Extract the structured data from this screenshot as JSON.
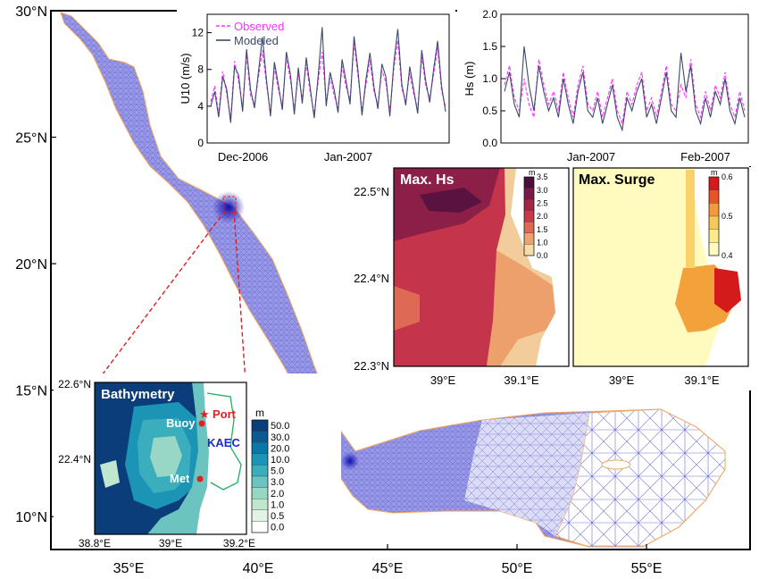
{
  "main_map": {
    "lat_labels": [
      "30°N",
      "25°N",
      "20°N",
      "15°N",
      "10°N"
    ],
    "lat_values": [
      30,
      25,
      20,
      15,
      10
    ],
    "lon_labels": [
      "35°E",
      "40°E",
      "45°E",
      "50°E",
      "55°E"
    ],
    "lon_values": [
      35,
      40,
      45,
      50,
      55
    ],
    "lat_range": [
      8.7,
      30
    ],
    "lon_range": [
      32,
      59
    ],
    "colors": {
      "mesh": "#7c7cdc",
      "dense_mesh": "#3333cc",
      "coast": "#f3a65a",
      "frame": "#000000"
    }
  },
  "wind_panel": {
    "ylabel": "U10 (m/s)",
    "yticks": [
      "0",
      "4",
      "8",
      "12"
    ],
    "ytick_values": [
      0,
      4,
      8,
      12
    ],
    "ylim": [
      0,
      14
    ],
    "xtick_labels": [
      "Dec-2006",
      "Jan-2007"
    ],
    "legend": [
      {
        "label": "Observed",
        "color": "#ff33ff",
        "style": "dashed"
      },
      {
        "label": "Modeled",
        "color": "#3a4a6a",
        "style": "solid"
      }
    ],
    "chart_data": {
      "type": "line",
      "series": [
        {
          "name": "Observed",
          "values": [
            4.5,
            6.2,
            3.1,
            7.8,
            5.4,
            2.6,
            8.9,
            6.7,
            3.9,
            9.6,
            5.1,
            4.3,
            7.2,
            10.1,
            6.4,
            3.3,
            8.2,
            5.8,
            4.1,
            9.3,
            6.9,
            3.6,
            7.5,
            4.8,
            8.6,
            5.5,
            3.2,
            6.8,
            9.9,
            4.4,
            7.1,
            5.2,
            3.8,
            8.4,
            6.1,
            4.7,
            10.8,
            7.3,
            3.5,
            6.3,
            9.1,
            5.6,
            4.2,
            7.9,
            6.6,
            3.4,
            8.1,
            11.2,
            5.9,
            4.6,
            7.6,
            5.3,
            3.7,
            9.4,
            6.2,
            4.9,
            7.4,
            10.4,
            5.7,
            3.9
          ]
        },
        {
          "name": "Modeled",
          "values": [
            4.0,
            5.6,
            2.8,
            7.2,
            5.9,
            2.2,
            8.3,
            7.4,
            3.4,
            10.2,
            5.8,
            3.8,
            7.8,
            11.5,
            6.9,
            2.9,
            8.8,
            6.3,
            3.6,
            9.9,
            7.5,
            3.1,
            8.2,
            4.3,
            9.3,
            6.0,
            2.7,
            7.4,
            12.6,
            4.0,
            7.7,
            5.8,
            3.3,
            9.1,
            6.7,
            4.2,
            11.6,
            7.9,
            3.0,
            6.9,
            9.8,
            6.1,
            3.7,
            8.6,
            7.2,
            2.9,
            8.8,
            12.4,
            6.4,
            4.1,
            8.3,
            5.8,
            3.2,
            10.1,
            6.8,
            4.4,
            8.0,
            11.1,
            6.2,
            3.4
          ]
        }
      ]
    }
  },
  "wave_panel": {
    "ylabel": "Hs (m)",
    "yticks": [
      "0.0",
      "0.5",
      "1.0",
      "1.5",
      "2.0"
    ],
    "ytick_values": [
      0,
      0.5,
      1,
      1.5,
      2
    ],
    "ylim": [
      0,
      2
    ],
    "xtick_labels": [
      "Jan-2007",
      "Feb-2007"
    ],
    "chart_data": {
      "type": "line",
      "series": [
        {
          "name": "Observed",
          "values": [
            0.9,
            1.2,
            0.7,
            0.5,
            1.0,
            0.6,
            0.4,
            1.3,
            0.9,
            0.6,
            0.8,
            0.5,
            1.1,
            0.7,
            0.4,
            0.9,
            1.2,
            0.6,
            0.5,
            0.8,
            0.4,
            0.7,
            1.0,
            0.5,
            0.3,
            0.8,
            0.6,
            0.9,
            1.1,
            0.5,
            0.7,
            0.4,
            0.8,
            1.2,
            0.6,
            0.5,
            0.9,
            0.7,
            1.3,
            0.6,
            0.4,
            0.8,
            0.5,
            0.9,
            0.7,
            1.1,
            0.6,
            0.4,
            0.8,
            0.5
          ]
        },
        {
          "name": "Modeled",
          "values": [
            0.8,
            1.1,
            0.6,
            0.4,
            1.5,
            0.9,
            0.5,
            1.2,
            0.8,
            0.5,
            0.7,
            0.4,
            1.0,
            0.6,
            0.3,
            0.8,
            1.1,
            0.5,
            0.4,
            0.7,
            0.3,
            0.6,
            0.9,
            0.4,
            0.2,
            0.7,
            0.5,
            0.8,
            1.0,
            0.4,
            0.6,
            0.3,
            0.7,
            1.1,
            0.5,
            0.4,
            1.4,
            0.8,
            1.2,
            0.5,
            0.3,
            0.7,
            0.4,
            0.8,
            0.6,
            1.0,
            0.5,
            0.3,
            0.7,
            0.4
          ]
        }
      ]
    }
  },
  "zoom_panels": {
    "lat_labels": [
      "22.5°N",
      "22.4°N",
      "22.3°N"
    ],
    "lon_labels": [
      "39°E",
      "39.1°E"
    ]
  },
  "max_hs": {
    "title": "Max. Hs",
    "unit": "m",
    "colorbar_labels": [
      "3.5",
      "3.0",
      "2.5",
      "2.0",
      "1.5",
      "1.0",
      "0.0"
    ],
    "colorbar_colors": [
      "#4a0f3a",
      "#7a1a4a",
      "#a52545",
      "#c83a48",
      "#de6a55",
      "#eda36e",
      "#f6dca6"
    ]
  },
  "max_surge": {
    "title": "Max. Surge",
    "unit": "m",
    "colorbar_labels": [
      "0.6",
      "0.5",
      "0.4"
    ],
    "colorbar_colors": [
      "#d41a1a",
      "#e8542a",
      "#f39a3a",
      "#f8c85a",
      "#fbeb8a",
      "#fffbbf"
    ]
  },
  "bathymetry": {
    "title": "Bathymetry",
    "unit": "m",
    "lat_labels": [
      "22.6°N",
      "22.4°N"
    ],
    "lon_labels": [
      "38.8°E",
      "39°E",
      "39.2°E"
    ],
    "colorbar_labels": [
      "50.0",
      "30.0",
      "20.0",
      "10.0",
      "5.0",
      "3.0",
      "2.0",
      "1.0",
      "0.5",
      "0.0"
    ],
    "colorbar_colors": [
      "#0a3d7a",
      "#0b5a92",
      "#0b77a8",
      "#1c94b6",
      "#3aaebd",
      "#6cc4c0",
      "#98d6c6",
      "#c0e6d0",
      "#e2f3e4",
      "#ffffff"
    ],
    "labels": {
      "buoy": "Buoy",
      "port": "Port",
      "kaec": "KAEC",
      "met": "Met"
    }
  }
}
